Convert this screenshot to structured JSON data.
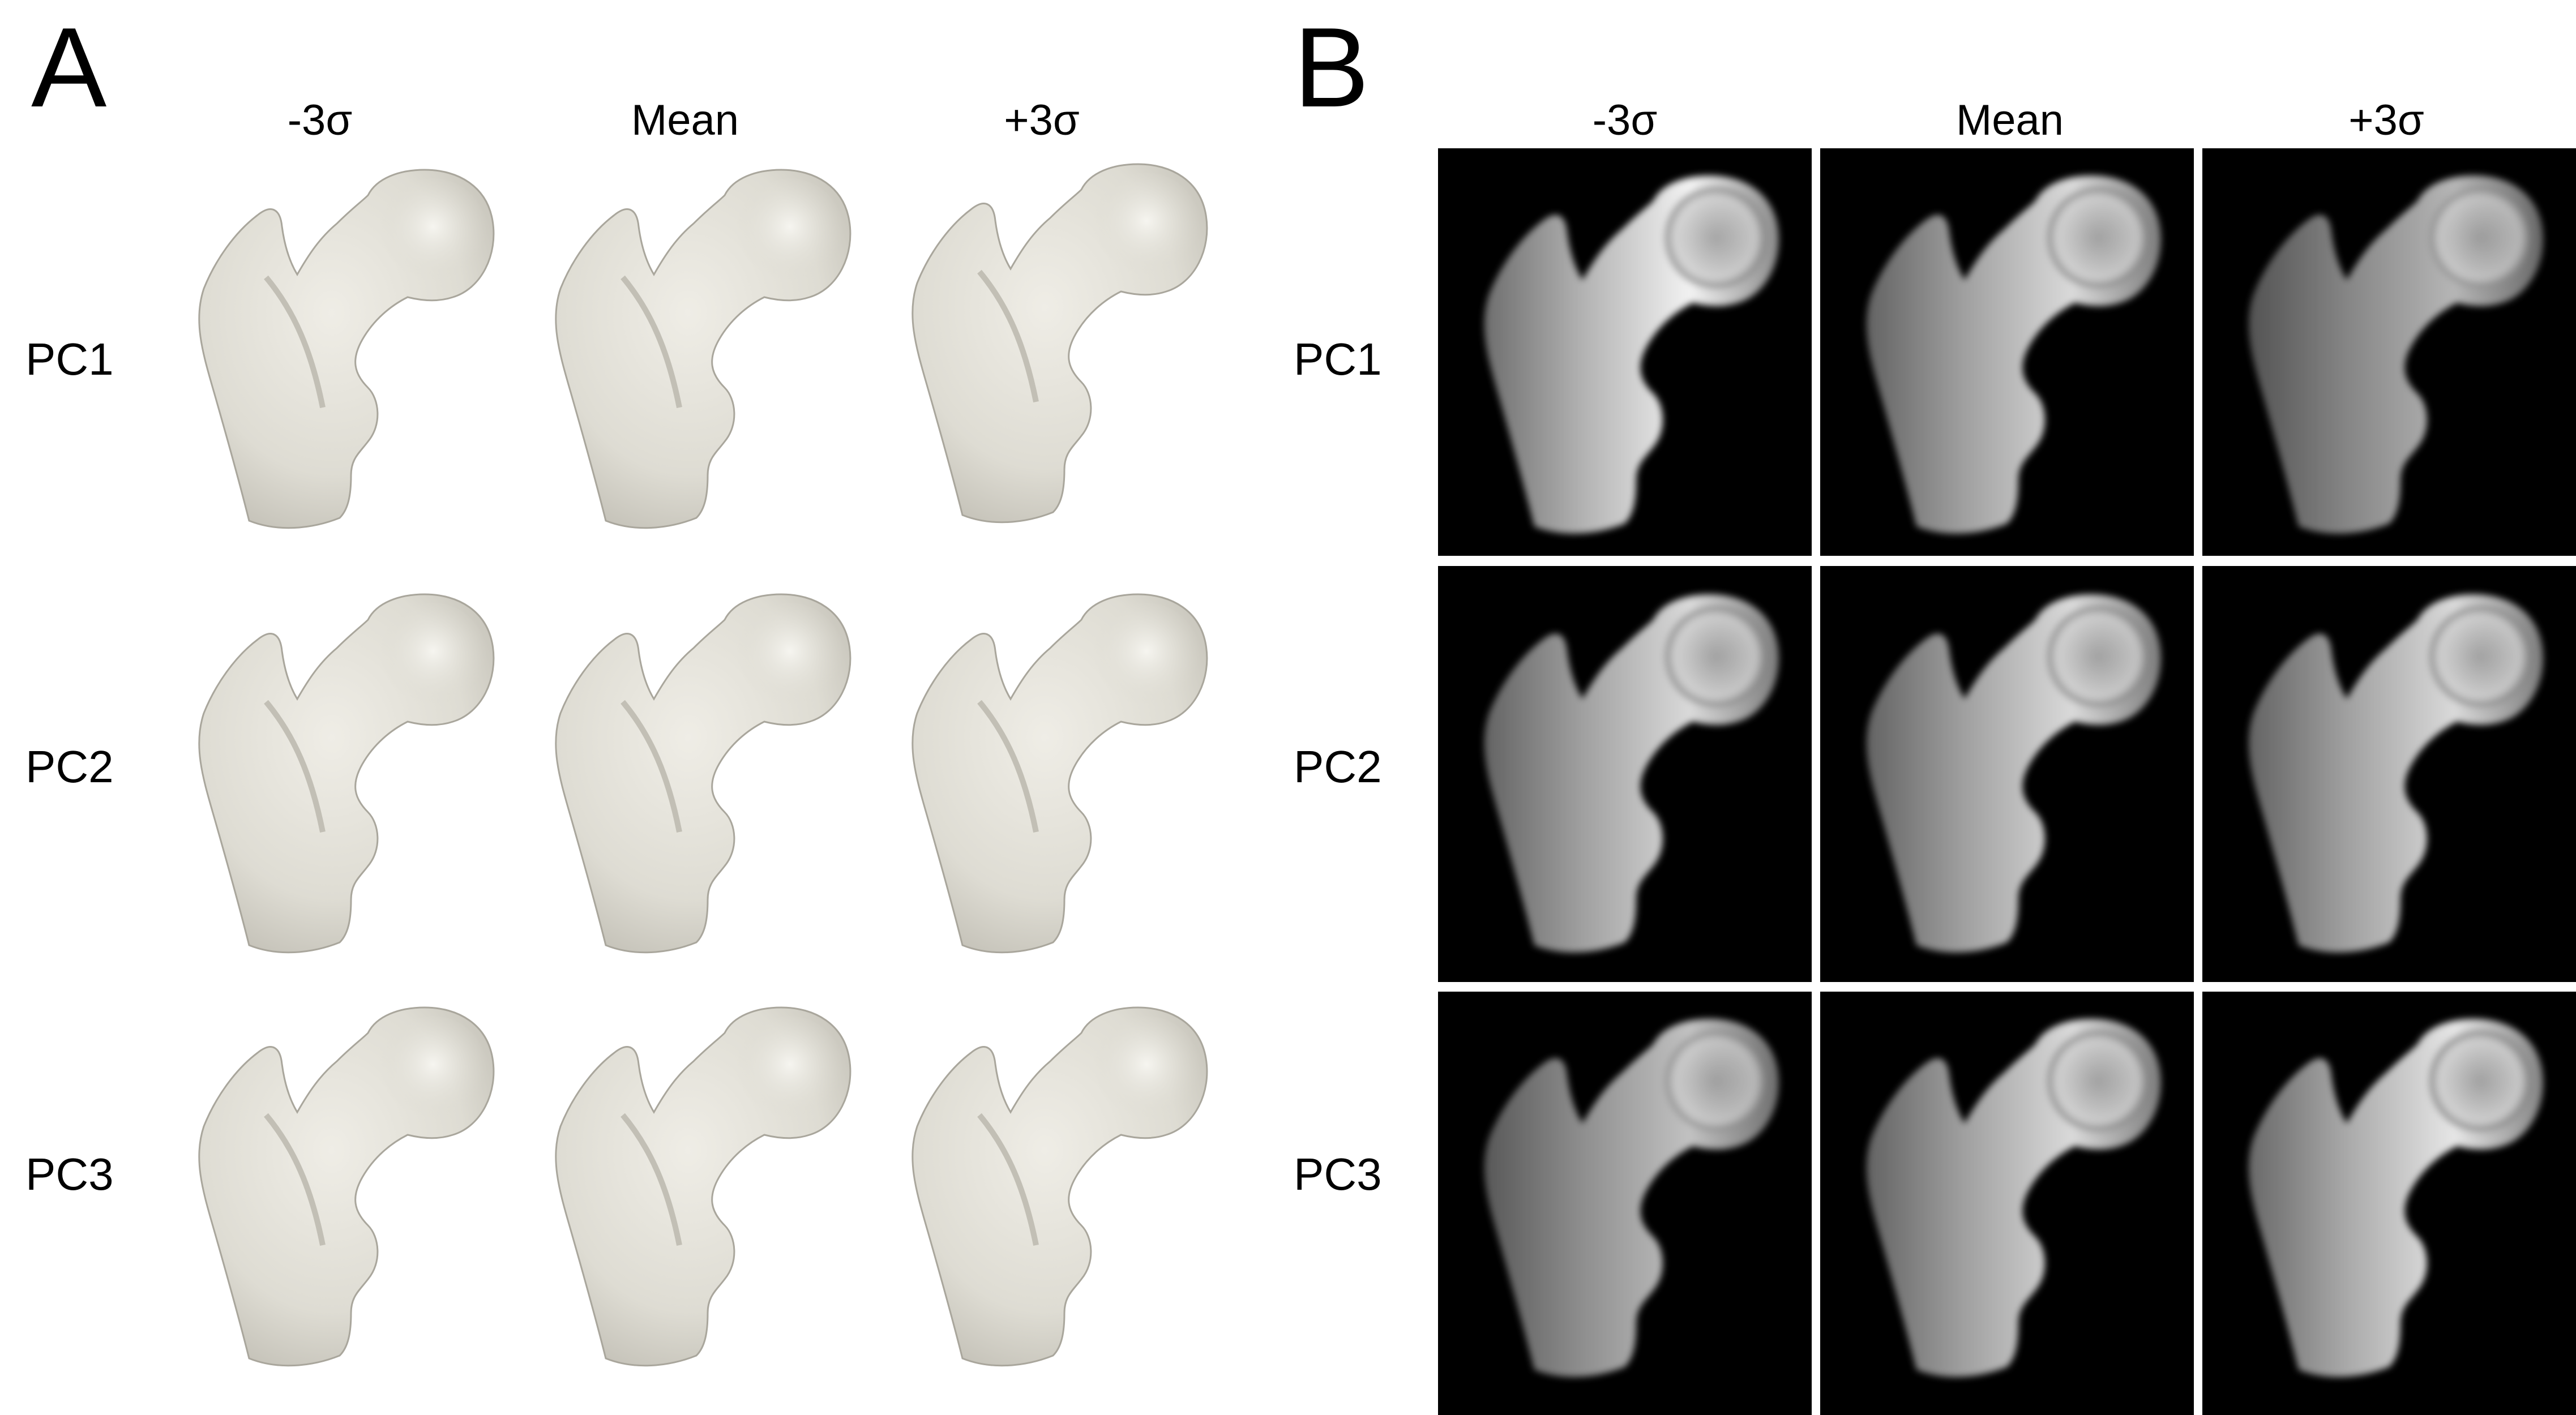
{
  "panels": {
    "a": {
      "letter": "A",
      "columns": [
        "-3σ",
        "Mean",
        "+3σ"
      ],
      "rows": [
        "PC1",
        "PC2",
        "PC3"
      ]
    },
    "b": {
      "letter": "B",
      "columns": [
        "-3σ",
        "Mean",
        "+3σ"
      ],
      "rows": [
        "PC1",
        "PC2",
        "PC3"
      ]
    }
  },
  "colors": {
    "bone_surface": "#e2e0d8",
    "bone_shade": "#b9b6ac",
    "drr_background": "#000000",
    "drr_bright": "#f2f2f2"
  },
  "icons": {
    "panel_a_cell": "femur-surface-render-icon",
    "panel_b_cell": "femur-drr-xray-icon"
  }
}
